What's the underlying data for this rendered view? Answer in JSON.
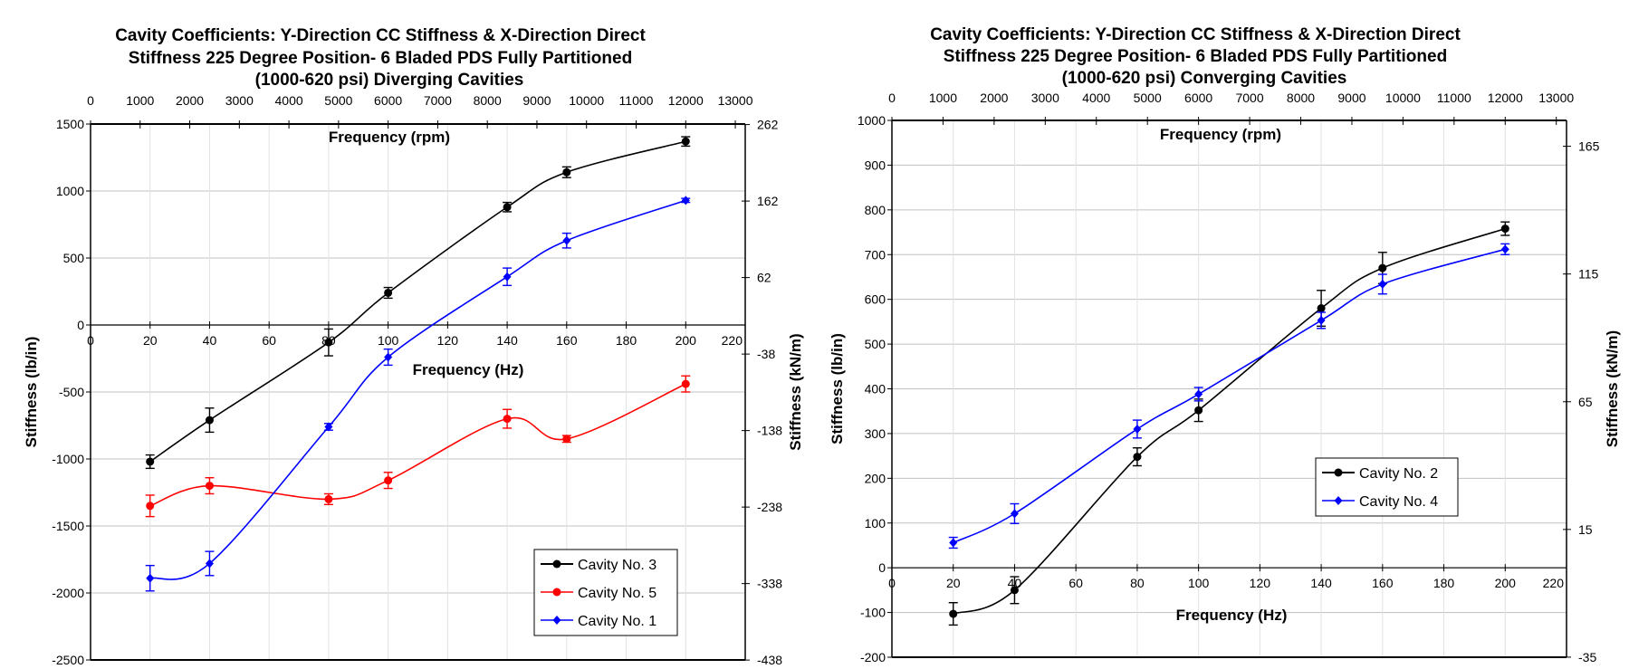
{
  "chart_data": [
    {
      "type": "line",
      "title_lines": [
        "Cavity Coefficients: Y-Direction CC Stiffness & X-Direction Direct",
        "Stiffness 225 Degree Position- 6 Bladed PDS Fully Partitioned",
        "(1000-620 psi) Diverging Cavities"
      ],
      "xlabel": "Frequency (Hz)",
      "x2label": "Frequency (rpm)",
      "ylabel": "Stiffness (lb/in)",
      "y2label": "Stiffness (kN/m)",
      "xlim": [
        0,
        220
      ],
      "xticks": [
        0,
        20,
        40,
        60,
        80,
        100,
        120,
        140,
        160,
        180,
        200,
        220
      ],
      "x2ticks": [
        0,
        1000,
        2000,
        3000,
        4000,
        5000,
        6000,
        7000,
        8000,
        9000,
        10000,
        11000,
        12000,
        13000
      ],
      "ylim": [
        -2500,
        1500
      ],
      "yticks": [
        1500,
        1000,
        500,
        0,
        -500,
        -1000,
        -1500,
        -2000,
        -2500
      ],
      "y2ticks": [
        262,
        162,
        62,
        -38,
        -138,
        -238,
        -338,
        -438
      ],
      "grid": true,
      "legend_position": "bottom-right",
      "series": [
        {
          "name": "Cavity No. 3",
          "color": "#000000",
          "marker": "circle",
          "x": [
            20,
            40,
            80,
            100,
            140,
            160,
            200
          ],
          "y": [
            -1020,
            -710,
            -130,
            240,
            880,
            1140,
            1370
          ],
          "err": [
            50,
            90,
            100,
            40,
            35,
            40,
            35
          ]
        },
        {
          "name": "Cavity No. 5",
          "color": "#ff0000",
          "marker": "circle",
          "x": [
            20,
            40,
            80,
            100,
            140,
            160,
            200
          ],
          "y": [
            -1350,
            -1200,
            -1300,
            -1160,
            -700,
            -850,
            -440
          ],
          "err": [
            80,
            60,
            40,
            60,
            70,
            25,
            60
          ]
        },
        {
          "name": "Cavity No. 1",
          "color": "#0000ff",
          "marker": "diamond",
          "x": [
            20,
            40,
            80,
            100,
            140,
            160,
            200
          ],
          "y": [
            -1890,
            -1780,
            -760,
            -240,
            360,
            630,
            930
          ],
          "err": [
            95,
            90,
            25,
            60,
            65,
            55,
            15
          ]
        }
      ]
    },
    {
      "type": "line",
      "title_lines": [
        "Cavity Coefficients: Y-Direction CC Stiffness & X-Direction Direct",
        "Stiffness 225 Degree Position- 6 Bladed PDS Fully Partitioned",
        "(1000-620 psi) Converging Cavities"
      ],
      "xlabel": "Frequency (Hz)",
      "x2label": "Frequency (rpm)",
      "ylabel": "Stiffness (lb/in)",
      "y2label": "Stiffness (kN/m)",
      "xlim": [
        0,
        220
      ],
      "xticks": [
        0,
        20,
        40,
        60,
        80,
        100,
        120,
        140,
        160,
        180,
        200,
        220
      ],
      "x2ticks": [
        0,
        1000,
        2000,
        3000,
        4000,
        5000,
        6000,
        7000,
        8000,
        9000,
        10000,
        11000,
        12000,
        13000
      ],
      "ylim": [
        -200,
        1000
      ],
      "yticks": [
        1000,
        900,
        800,
        700,
        600,
        500,
        400,
        300,
        200,
        100,
        0,
        -100,
        -200
      ],
      "y2ticks": [
        165,
        115,
        65,
        15,
        -35
      ],
      "grid": true,
      "legend_position": "center-right",
      "series": [
        {
          "name": "Cavity No. 2",
          "color": "#000000",
          "marker": "circle",
          "x": [
            20,
            40,
            80,
            100,
            140,
            160,
            200
          ],
          "y": [
            -103,
            -50,
            248,
            352,
            580,
            670,
            758
          ],
          "err": [
            25,
            30,
            20,
            25,
            40,
            35,
            15
          ]
        },
        {
          "name": "Cavity No. 4",
          "color": "#0000ff",
          "marker": "diamond",
          "x": [
            20,
            40,
            80,
            100,
            140,
            160,
            200
          ],
          "y": [
            56,
            121,
            310,
            388,
            553,
            634,
            712
          ],
          "err": [
            12,
            22,
            20,
            15,
            18,
            22,
            12
          ]
        }
      ]
    }
  ]
}
